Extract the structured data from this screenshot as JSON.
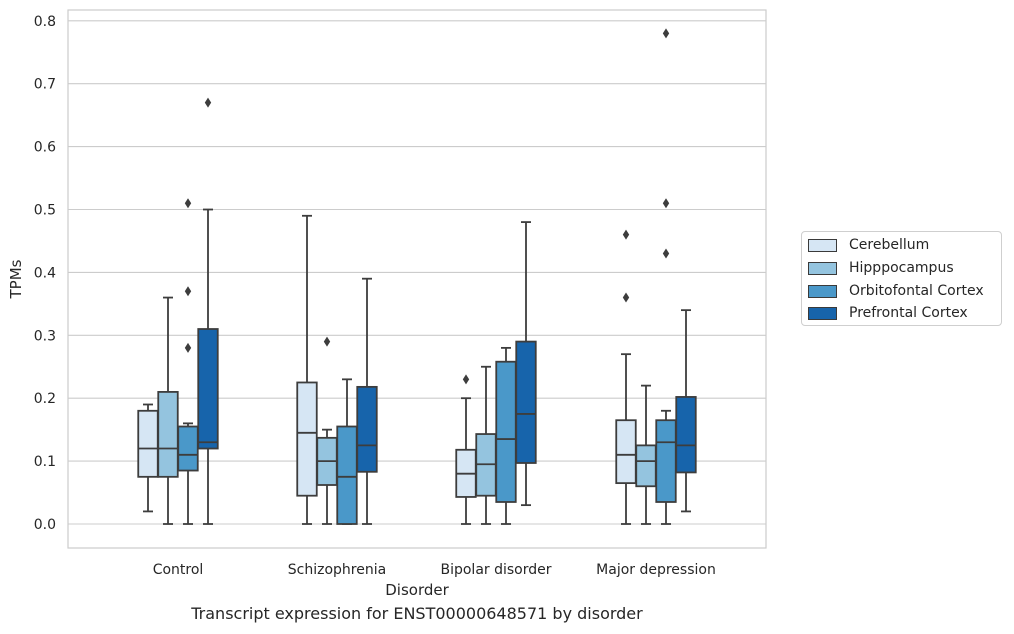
{
  "caption": "Transcript expression for ENST00000648571 by disorder",
  "legend_entries": [
    "Cerebellum",
    "Hipppocampus",
    "Orbitofontal Cortex",
    "Prefrontal Cortex"
  ],
  "chart_data": {
    "type": "box",
    "title": "",
    "xlabel": "Disorder",
    "ylabel": "TPMs",
    "ylim": [
      -0.04,
      0.82
    ],
    "yticks": [
      "0.0",
      "0.1",
      "0.2",
      "0.3",
      "0.4",
      "0.5",
      "0.6",
      "0.7",
      "0.8"
    ],
    "grid": "horizontal",
    "legend_position": "right",
    "categories": [
      "Control",
      "Schizophrenia",
      "Bipolar disorder",
      "Major depression"
    ],
    "series": [
      {
        "name": "Cerebellum",
        "color": "#d6e6f4",
        "boxes": [
          {
            "whisker_low": 0.02,
            "q1": 0.075,
            "median": 0.12,
            "q3": 0.18,
            "whisker_high": 0.19,
            "outliers": []
          },
          {
            "whisker_low": 0.0,
            "q1": 0.045,
            "median": 0.145,
            "q3": 0.225,
            "whisker_high": 0.49,
            "outliers": []
          },
          {
            "whisker_low": 0.0,
            "q1": 0.043,
            "median": 0.08,
            "q3": 0.118,
            "whisker_high": 0.2,
            "outliers": [
              0.23
            ]
          },
          {
            "whisker_low": 0.0,
            "q1": 0.065,
            "median": 0.11,
            "q3": 0.165,
            "whisker_high": 0.27,
            "outliers": [
              0.36,
              0.46
            ]
          }
        ]
      },
      {
        "name": "Hipppocampus",
        "color": "#94c4df",
        "boxes": [
          {
            "whisker_low": 0.0,
            "q1": 0.075,
            "median": 0.12,
            "q3": 0.21,
            "whisker_high": 0.36,
            "outliers": []
          },
          {
            "whisker_low": 0.0,
            "q1": 0.062,
            "median": 0.1,
            "q3": 0.137,
            "whisker_high": 0.15,
            "outliers": [
              0.29
            ]
          },
          {
            "whisker_low": 0.0,
            "q1": 0.045,
            "median": 0.095,
            "q3": 0.143,
            "whisker_high": 0.25,
            "outliers": []
          },
          {
            "whisker_low": 0.0,
            "q1": 0.06,
            "median": 0.1,
            "q3": 0.125,
            "whisker_high": 0.22,
            "outliers": []
          }
        ]
      },
      {
        "name": "Orbitofontal Cortex",
        "color": "#4a98c9",
        "boxes": [
          {
            "whisker_low": 0.0,
            "q1": 0.085,
            "median": 0.11,
            "q3": 0.155,
            "whisker_high": 0.16,
            "outliers": [
              0.28,
              0.37,
              0.51
            ]
          },
          {
            "whisker_low": 0.0,
            "q1": 0.0,
            "median": 0.075,
            "q3": 0.155,
            "whisker_high": 0.23,
            "outliers": []
          },
          {
            "whisker_low": 0.0,
            "q1": 0.035,
            "median": 0.135,
            "q3": 0.258,
            "whisker_high": 0.28,
            "outliers": []
          },
          {
            "whisker_low": 0.0,
            "q1": 0.035,
            "median": 0.13,
            "q3": 0.165,
            "whisker_high": 0.18,
            "outliers": [
              0.43,
              0.51,
              0.78
            ]
          }
        ]
      },
      {
        "name": "Prefrontal Cortex",
        "color": "#1764ab",
        "boxes": [
          {
            "whisker_low": 0.0,
            "q1": 0.12,
            "median": 0.13,
            "q3": 0.31,
            "whisker_high": 0.5,
            "outliers": [
              0.67
            ]
          },
          {
            "whisker_low": 0.0,
            "q1": 0.083,
            "median": 0.125,
            "q3": 0.218,
            "whisker_high": 0.39,
            "outliers": []
          },
          {
            "whisker_low": 0.03,
            "q1": 0.097,
            "median": 0.175,
            "q3": 0.29,
            "whisker_high": 0.48,
            "outliers": []
          },
          {
            "whisker_low": 0.02,
            "q1": 0.082,
            "median": 0.125,
            "q3": 0.202,
            "whisker_high": 0.34,
            "outliers": []
          }
        ]
      }
    ]
  }
}
